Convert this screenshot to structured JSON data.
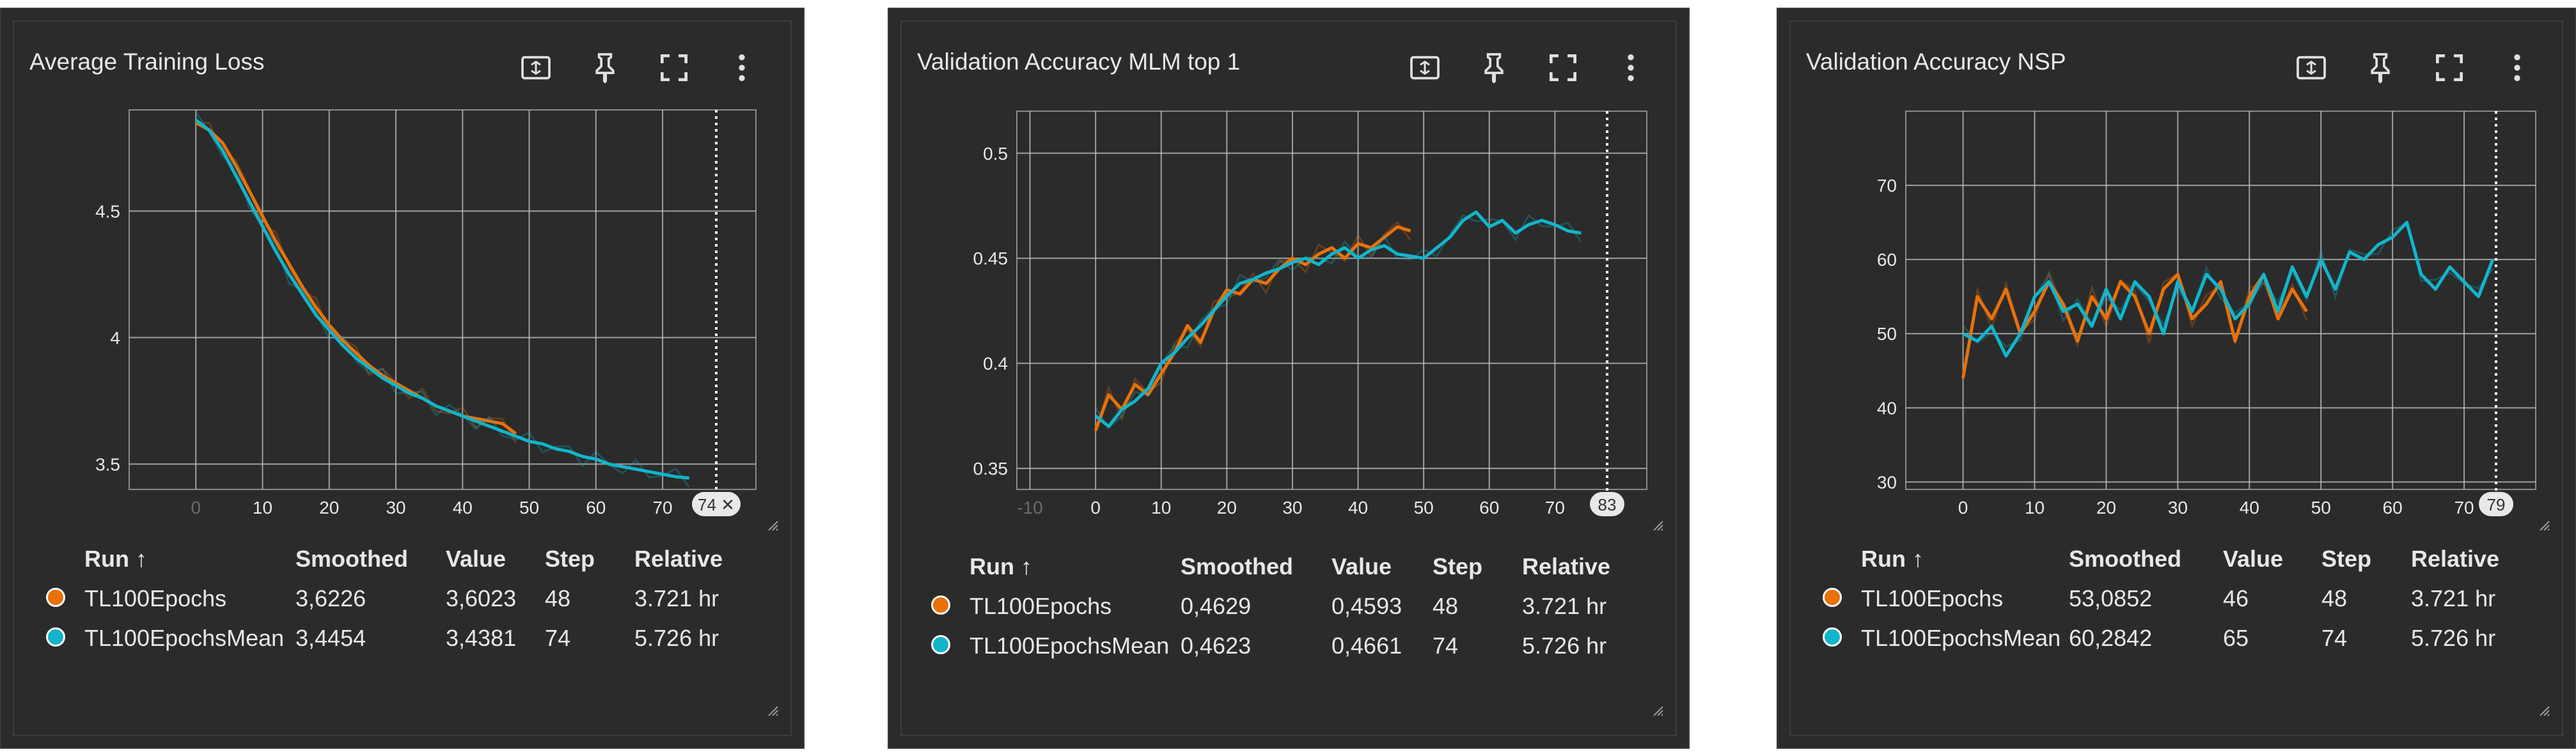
{
  "colors": {
    "run1": "#e8710a",
    "run2": "#12b5cb",
    "card_bg": "#2b2b2b",
    "grid": "#bdbdbd",
    "text": "#e8e8e8"
  },
  "icons": [
    "fit-domain-icon",
    "pin-icon",
    "fullscreen-icon",
    "more-vert-icon"
  ],
  "table_headers": {
    "run": "Run ↑",
    "smoothed": "Smoothed",
    "value": "Value",
    "step": "Step",
    "relative": "Relative"
  },
  "cards": [
    {
      "title": "Average Training Loss",
      "hover_step": "74 ✕",
      "rows": [
        {
          "run": "TL100Epochs",
          "smoothed": "3,6226",
          "value": "3,6023",
          "step": "48",
          "relative": "3.721 hr"
        },
        {
          "run": "TL100EpochsMean",
          "smoothed": "3,4454",
          "value": "3,4381",
          "step": "74",
          "relative": "5.726 hr"
        }
      ]
    },
    {
      "title": "Validation Accuracy MLM top 1",
      "hover_step": "83",
      "rows": [
        {
          "run": "TL100Epochs",
          "smoothed": "0,4629",
          "value": "0,4593",
          "step": "48",
          "relative": "3.721 hr"
        },
        {
          "run": "TL100EpochsMean",
          "smoothed": "0,4623",
          "value": "0,4661",
          "step": "74",
          "relative": "5.726 hr"
        }
      ]
    },
    {
      "title": "Validation Accuracy NSP",
      "hover_step": "79",
      "rows": [
        {
          "run": "TL100Epochs",
          "smoothed": "53,0852",
          "value": "46",
          "step": "48",
          "relative": "3.721 hr"
        },
        {
          "run": "TL100EpochsMean",
          "smoothed": "60,2842",
          "value": "65",
          "step": "74",
          "relative": "5.726 hr"
        }
      ]
    }
  ],
  "chart_data": [
    {
      "type": "line",
      "title": "Average Training Loss",
      "xlim": [
        -10,
        84
      ],
      "ylim": [
        3.4,
        4.9
      ],
      "xticks": [
        "0",
        "10",
        "20",
        "30",
        "40",
        "50",
        "60",
        "70"
      ],
      "xtick_values": [
        0,
        10,
        20,
        30,
        40,
        50,
        60,
        70
      ],
      "xtick_dim": [
        "0"
      ],
      "yticks": [
        "3.5",
        "4",
        "4.5"
      ],
      "ytick_values": [
        3.5,
        4.0,
        4.5
      ],
      "series": [
        {
          "name": "TL100Epochs",
          "x": [
            0,
            2,
            4,
            6,
            8,
            10,
            12,
            14,
            16,
            18,
            20,
            22,
            24,
            26,
            28,
            30,
            32,
            34,
            36,
            38,
            40,
            42,
            44,
            46,
            48
          ],
          "y": [
            4.85,
            4.82,
            4.77,
            4.68,
            4.58,
            4.48,
            4.38,
            4.29,
            4.2,
            4.12,
            4.05,
            3.99,
            3.94,
            3.89,
            3.85,
            3.82,
            3.79,
            3.76,
            3.73,
            3.71,
            3.69,
            3.68,
            3.67,
            3.66,
            3.62
          ]
        },
        {
          "name": "TL100EpochsMean",
          "x": [
            0,
            2,
            4,
            6,
            8,
            10,
            12,
            14,
            16,
            18,
            20,
            22,
            24,
            26,
            28,
            30,
            32,
            34,
            36,
            38,
            40,
            42,
            44,
            46,
            48,
            50,
            52,
            54,
            56,
            58,
            60,
            62,
            64,
            66,
            68,
            70,
            72,
            74
          ],
          "y": [
            4.86,
            4.82,
            4.74,
            4.64,
            4.54,
            4.44,
            4.34,
            4.25,
            4.17,
            4.09,
            4.03,
            3.97,
            3.92,
            3.88,
            3.84,
            3.81,
            3.78,
            3.76,
            3.73,
            3.71,
            3.69,
            3.67,
            3.65,
            3.63,
            3.61,
            3.59,
            3.58,
            3.56,
            3.55,
            3.53,
            3.52,
            3.5,
            3.49,
            3.48,
            3.47,
            3.46,
            3.45,
            3.445
          ]
        }
      ]
    },
    {
      "type": "line",
      "title": "Validation Accuracy MLM top 1",
      "xlim": [
        -12,
        84
      ],
      "ylim": [
        0.34,
        0.52
      ],
      "xticks": [
        "-10",
        "0",
        "10",
        "20",
        "30",
        "40",
        "50",
        "60",
        "70"
      ],
      "xtick_values": [
        -10,
        0,
        10,
        20,
        30,
        40,
        50,
        60,
        70
      ],
      "xtick_dim": [
        "-10"
      ],
      "yticks": [
        "0.35",
        "0.4",
        "0.45",
        "0.5"
      ],
      "ytick_values": [
        0.35,
        0.4,
        0.45,
        0.5
      ],
      "series": [
        {
          "name": "TL100Epochs",
          "x": [
            0,
            2,
            4,
            6,
            8,
            10,
            12,
            14,
            16,
            18,
            20,
            22,
            24,
            26,
            28,
            30,
            32,
            34,
            36,
            38,
            40,
            42,
            44,
            46,
            48
          ],
          "y": [
            0.368,
            0.385,
            0.378,
            0.39,
            0.385,
            0.395,
            0.405,
            0.418,
            0.41,
            0.425,
            0.435,
            0.433,
            0.44,
            0.438,
            0.445,
            0.45,
            0.447,
            0.452,
            0.455,
            0.45,
            0.457,
            0.455,
            0.46,
            0.465,
            0.463
          ]
        },
        {
          "name": "TL100EpochsMean",
          "x": [
            0,
            2,
            4,
            6,
            8,
            10,
            12,
            14,
            16,
            18,
            20,
            22,
            24,
            26,
            28,
            30,
            32,
            34,
            36,
            38,
            40,
            42,
            44,
            46,
            48,
            50,
            52,
            54,
            56,
            58,
            60,
            62,
            64,
            66,
            68,
            70,
            72,
            74
          ],
          "y": [
            0.375,
            0.37,
            0.378,
            0.382,
            0.388,
            0.4,
            0.405,
            0.412,
            0.418,
            0.425,
            0.432,
            0.438,
            0.44,
            0.443,
            0.445,
            0.448,
            0.45,
            0.447,
            0.452,
            0.455,
            0.45,
            0.454,
            0.456,
            0.452,
            0.451,
            0.45,
            0.455,
            0.46,
            0.468,
            0.472,
            0.465,
            0.468,
            0.462,
            0.466,
            0.468,
            0.466,
            0.463,
            0.462
          ]
        }
      ]
    },
    {
      "type": "line",
      "title": "Validation Accuracy NSP",
      "xlim": [
        -8,
        80
      ],
      "ylim": [
        29,
        80
      ],
      "xticks": [
        "0",
        "10",
        "20",
        "30",
        "40",
        "50",
        "60",
        "70"
      ],
      "xtick_values": [
        0,
        10,
        20,
        30,
        40,
        50,
        60,
        70
      ],
      "xtick_dim": [],
      "yticks": [
        "30",
        "40",
        "50",
        "60",
        "70"
      ],
      "ytick_values": [
        30,
        40,
        50,
        60,
        70
      ],
      "series": [
        {
          "name": "TL100Epochs",
          "x": [
            0,
            2,
            4,
            6,
            8,
            10,
            12,
            14,
            16,
            18,
            20,
            22,
            24,
            26,
            28,
            30,
            32,
            34,
            36,
            38,
            40,
            42,
            44,
            46,
            48
          ],
          "y": [
            44,
            55,
            52,
            56,
            50,
            53,
            57,
            54,
            49,
            55,
            52,
            57,
            55,
            50,
            56,
            58,
            52,
            54,
            57,
            49,
            55,
            58,
            52,
            56,
            53
          ]
        },
        {
          "name": "TL100EpochsMean",
          "x": [
            0,
            2,
            4,
            6,
            8,
            10,
            12,
            14,
            16,
            18,
            20,
            22,
            24,
            26,
            28,
            30,
            32,
            34,
            36,
            38,
            40,
            42,
            44,
            46,
            48,
            50,
            52,
            54,
            56,
            58,
            60,
            62,
            64,
            66,
            68,
            70,
            72,
            74
          ],
          "y": [
            50,
            49,
            51,
            47,
            50,
            55,
            57,
            53,
            54,
            51,
            56,
            52,
            57,
            55,
            50,
            57,
            53,
            58,
            56,
            52,
            54,
            58,
            53,
            59,
            55,
            60,
            56,
            61,
            60,
            62,
            63,
            65,
            58,
            56,
            59,
            57,
            55,
            60
          ]
        }
      ]
    }
  ]
}
